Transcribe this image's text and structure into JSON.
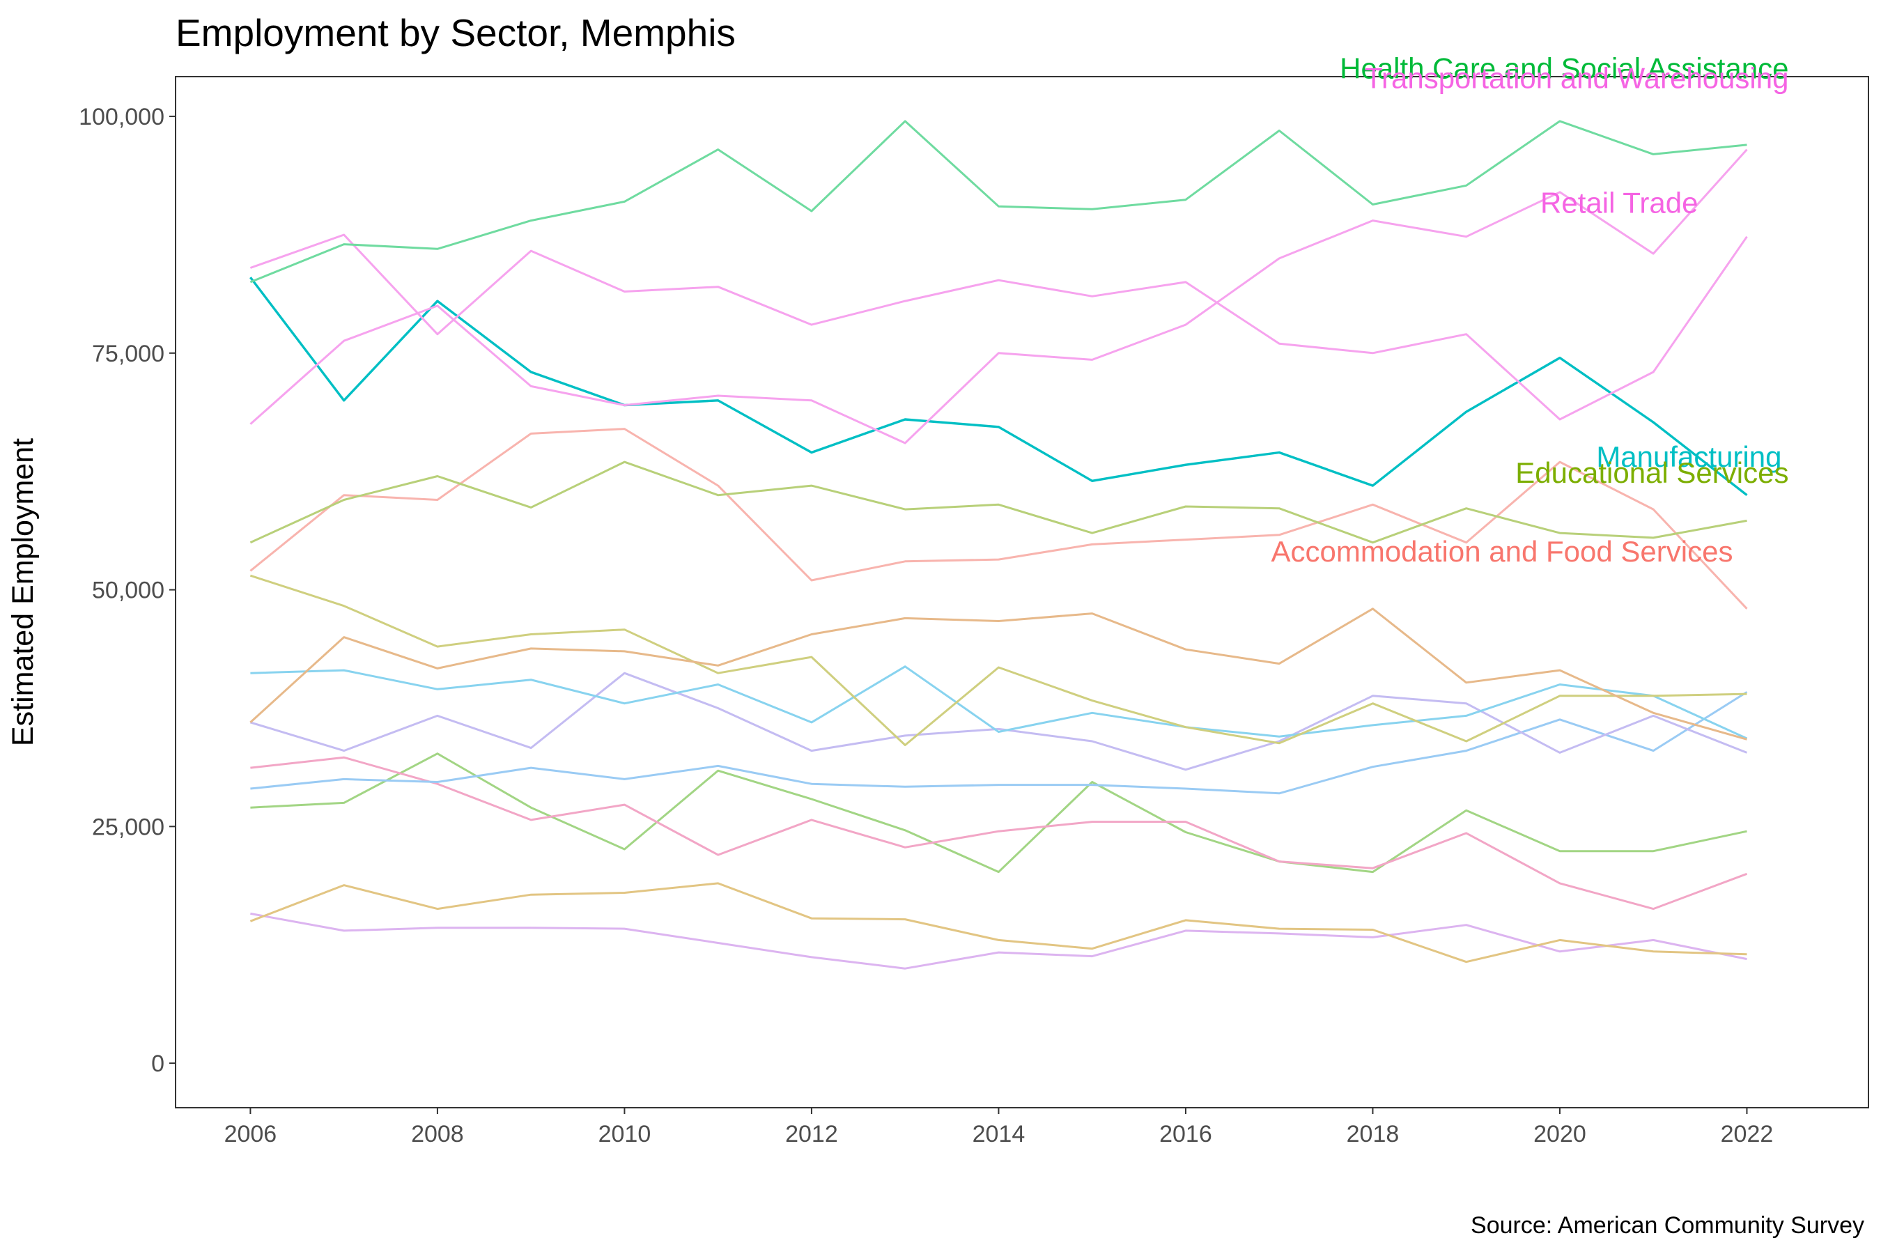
{
  "chart_data": {
    "type": "line",
    "title": "Employment by Sector, Memphis",
    "ylabel": "Estimated Employment",
    "xlabel": "",
    "caption": "Source: American Community Survey",
    "x": [
      2006,
      2007,
      2008,
      2009,
      2010,
      2011,
      2012,
      2013,
      2014,
      2015,
      2016,
      2017,
      2018,
      2019,
      2020,
      2021,
      2022
    ],
    "x_ticks": [
      "2006",
      "2008",
      "2010",
      "2012",
      "2014",
      "2016",
      "2018",
      "2020",
      "2022"
    ],
    "y_ticks": [
      "0",
      "25,000",
      "50,000",
      "75,000",
      "100,000"
    ],
    "xlim": [
      2005.2,
      2023.3
    ],
    "ylim": [
      -4700,
      104200
    ],
    "legend": "direct labels at line ends",
    "grid": false,
    "series": [
      {
        "name": "Health Care and Social Assistance",
        "label_color": "#00ba38",
        "color": "#6fdba0",
        "values": [
          82500,
          86500,
          86000,
          89000,
          91000,
          96500,
          90000,
          99500,
          90500,
          90200,
          91200,
          98500,
          90700,
          92700,
          99500,
          96000,
          97000
        ]
      },
      {
        "name": "Transportation and Warehousing",
        "label_color": "#f564e3",
        "color": "#f6a3ee",
        "values": [
          67500,
          76300,
          80000,
          71500,
          69500,
          70500,
          70000,
          65500,
          75000,
          74300,
          78000,
          85000,
          89000,
          87300,
          92000,
          85500,
          96500
        ]
      },
      {
        "name": "Retail Trade",
        "label_color": "#f564e3",
        "color": "#f6a3ee",
        "values": [
          84000,
          87500,
          77000,
          85800,
          81500,
          82000,
          78000,
          80500,
          82700,
          81000,
          82500,
          76000,
          75000,
          77000,
          68000,
          73000,
          87300
        ]
      },
      {
        "name": "Manufacturing",
        "label_color": "#00bfc4",
        "color": "#00bfc4",
        "values": [
          83000,
          70000,
          80500,
          73000,
          69500,
          70000,
          64500,
          68000,
          67200,
          61500,
          63200,
          64500,
          61000,
          68800,
          74500,
          67700,
          60000
        ]
      },
      {
        "name": "Educational Services",
        "label_color": "#7cae00",
        "color": "#b8d079",
        "values": [
          55000,
          59500,
          62000,
          58700,
          63500,
          60000,
          61000,
          58500,
          59000,
          56000,
          58800,
          58600,
          55000,
          58600,
          56000,
          55500,
          57300
        ]
      },
      {
        "name": "Accommodation and Food Services",
        "label_color": "#f8766d",
        "color": "#f8b4ae",
        "values": [
          52000,
          60000,
          59500,
          66500,
          67000,
          61000,
          51000,
          53000,
          53200,
          54800,
          55300,
          55800,
          59000,
          55000,
          63500,
          58500,
          48000
        ]
      },
      {
        "color": "#e7b98a",
        "values": [
          36000,
          45000,
          41700,
          43800,
          43500,
          42000,
          45300,
          47000,
          46700,
          47500,
          43700,
          42200,
          48000,
          40200,
          41500,
          37000,
          34200
        ]
      },
      {
        "color": "#cfcf7f",
        "values": [
          51500,
          48300,
          44000,
          45300,
          45800,
          41200,
          42900,
          33600,
          41800,
          38300,
          35500,
          33800,
          38000,
          34000,
          38800,
          38800,
          39000
        ]
      },
      {
        "color": "#88d3ef",
        "values": [
          41200,
          41500,
          39500,
          40500,
          38000,
          40000,
          36000,
          41900,
          35000,
          37000,
          35500,
          34500,
          35700,
          36700,
          40000,
          38800,
          34300
        ]
      },
      {
        "color": "#c4bcf2",
        "values": [
          36000,
          33000,
          36700,
          33300,
          41200,
          37500,
          33000,
          34600,
          35300,
          34000,
          31000,
          34000,
          38800,
          38000,
          32800,
          36700,
          32800
        ]
      },
      {
        "color": "#9acbf4",
        "values": [
          29000,
          30000,
          29700,
          31200,
          30000,
          31400,
          29500,
          29200,
          29400,
          29400,
          29000,
          28500,
          31300,
          33000,
          36300,
          33000,
          39200
        ]
      },
      {
        "color": "#f2a6c6",
        "values": [
          31200,
          32300,
          29500,
          25700,
          27300,
          22000,
          25700,
          22800,
          24500,
          25500,
          25500,
          21300,
          20600,
          24300,
          19000,
          16300,
          20000
        ]
      },
      {
        "color": "#a2d584",
        "values": [
          27000,
          27500,
          32700,
          27000,
          22600,
          30900,
          27900,
          24600,
          20200,
          29700,
          24400,
          21300,
          20200,
          26700,
          22400,
          22400,
          24500
        ]
      },
      {
        "color": "#e2c583",
        "values": [
          15000,
          18800,
          16300,
          17800,
          18000,
          19000,
          15300,
          15200,
          13000,
          12100,
          15100,
          14200,
          14100,
          10700,
          13000,
          11800,
          11500
        ]
      },
      {
        "color": "#dcb4f0",
        "values": [
          15800,
          14000,
          14300,
          14300,
          14200,
          12700,
          11200,
          10000,
          11700,
          11300,
          14000,
          13700,
          13300,
          14600,
          11800,
          13000,
          11000
        ]
      }
    ]
  }
}
